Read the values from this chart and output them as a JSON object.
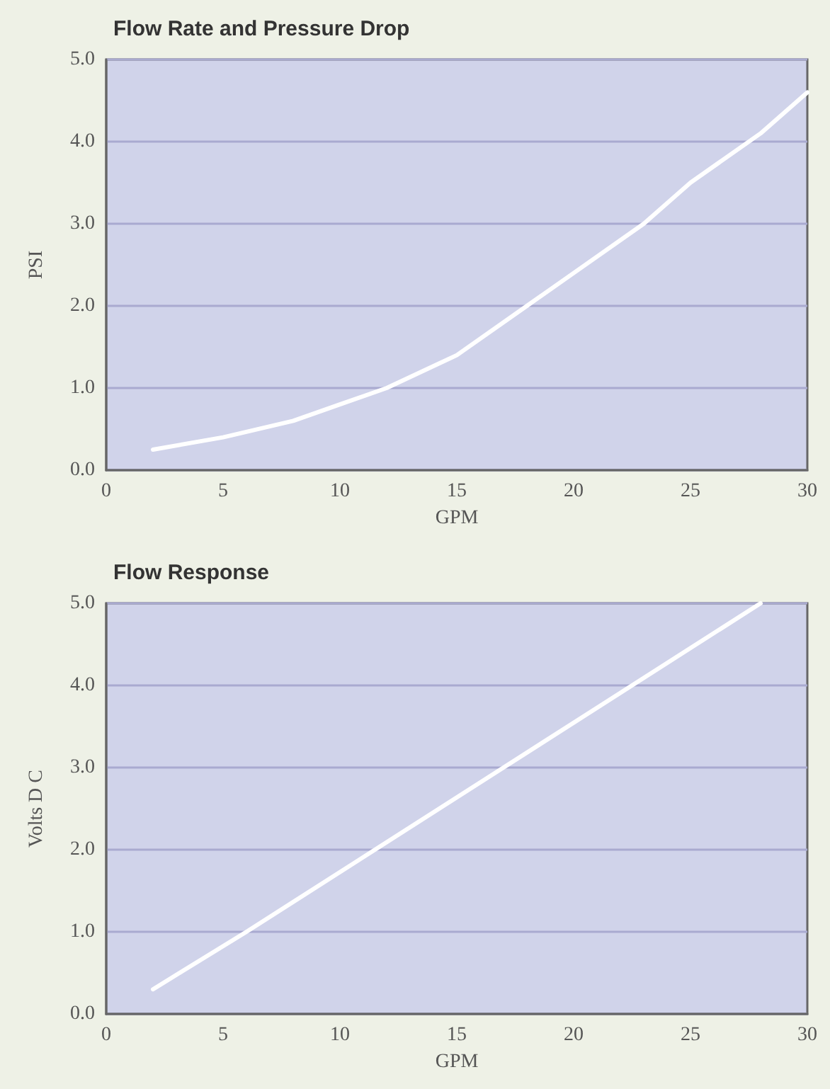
{
  "chart_data": [
    {
      "type": "line",
      "title": "Flow Rate and Pressure Drop",
      "xlabel": "GPM",
      "ylabel": "PSI",
      "series": [
        {
          "color": "#ffffff",
          "x": [
            2,
            5,
            8,
            10,
            12,
            15,
            18,
            20,
            23,
            25,
            28,
            30
          ],
          "values": [
            0.25,
            0.4,
            0.6,
            0.8,
            1.0,
            1.4,
            2.0,
            2.4,
            3.0,
            3.5,
            4.1,
            4.6
          ]
        }
      ],
      "xlim": [
        0,
        30
      ],
      "xticks": [
        0,
        5,
        10,
        15,
        20,
        25,
        30
      ],
      "ylim": [
        0,
        5
      ],
      "yticks": [
        {
          "value": 0,
          "label": "0.0"
        },
        {
          "value": 1,
          "label": "1.0"
        },
        {
          "value": 2,
          "label": "2.0"
        },
        {
          "value": 3,
          "label": "3.0"
        },
        {
          "value": 4,
          "label": "4.0"
        },
        {
          "value": 5,
          "label": "5.0"
        }
      ],
      "grid": "y",
      "marker": "none"
    },
    {
      "type": "line",
      "title": "Flow Response",
      "xlabel": "GPM",
      "ylabel": "Volts D C",
      "series": [
        {
          "color": "#ffffff",
          "x": [
            2,
            6,
            11.5,
            17,
            22.5,
            28
          ],
          "values": [
            0.3,
            1.0,
            2.0,
            3.0,
            4.0,
            5.0
          ]
        }
      ],
      "xlim": [
        0,
        30
      ],
      "xticks": [
        0,
        5,
        10,
        15,
        20,
        25,
        30
      ],
      "ylim": [
        0,
        5
      ],
      "yticks": [
        {
          "value": 0,
          "label": "0.0"
        },
        {
          "value": 1,
          "label": "1.0"
        },
        {
          "value": 2,
          "label": "2.0"
        },
        {
          "value": 3,
          "label": "3.0"
        },
        {
          "value": 4,
          "label": "4.0"
        },
        {
          "value": 5,
          "label": "5.0"
        }
      ],
      "grid": "y",
      "marker": "none"
    }
  ]
}
